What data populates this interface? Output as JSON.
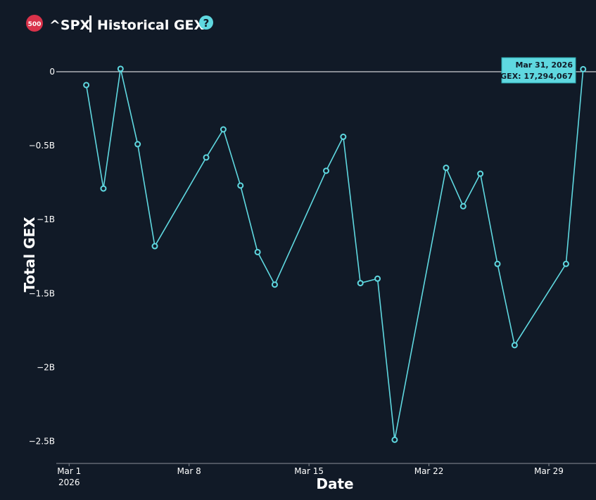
{
  "header": {
    "badge": "500",
    "symbol": "^SPX",
    "title": "Historical GEX",
    "help": "?"
  },
  "chart_data": {
    "type": "line",
    "x": [
      "2026-03-02",
      "2026-03-03",
      "2026-03-04",
      "2026-03-05",
      "2026-03-06",
      "2026-03-09",
      "2026-03-10",
      "2026-03-11",
      "2026-03-12",
      "2026-03-13",
      "2026-03-16",
      "2026-03-17",
      "2026-03-18",
      "2026-03-19",
      "2026-03-20",
      "2026-03-23",
      "2026-03-24",
      "2026-03-25",
      "2026-03-26",
      "2026-03-27",
      "2026-03-30",
      "2026-03-31"
    ],
    "series": [
      {
        "name": "GEX",
        "color": "#5fd8e0",
        "values": [
          -0.09,
          -0.79,
          0.02,
          -0.49,
          -1.18,
          -0.58,
          -0.39,
          -0.77,
          -1.22,
          -1.44,
          -0.67,
          -0.44,
          -1.43,
          -1.4,
          -2.49,
          -0.65,
          -0.91,
          -0.69,
          -1.3,
          -1.85,
          -1.3,
          0.017294067
        ]
      }
    ],
    "xlabel": "Date",
    "ylabel": "Total GEX",
    "xlim": [
      "2026-02-28T06:00:00Z",
      "2026-03-31T18:00:00Z"
    ],
    "xticks": [
      {
        "value": "2026-03-01",
        "label": "Mar 1",
        "sublabel": "2026"
      },
      {
        "value": "2026-03-08",
        "label": "Mar 8"
      },
      {
        "value": "2026-03-15",
        "label": "Mar 15"
      },
      {
        "value": "2026-03-22",
        "label": "Mar 22"
      },
      {
        "value": "2026-03-29",
        "label": "Mar 29"
      }
    ],
    "ylim": [
      -2.65,
      0.2
    ],
    "yticks": [
      {
        "value": -2.5,
        "label": "−2.5B"
      },
      {
        "value": -2,
        "label": "−2B"
      },
      {
        "value": -1.5,
        "label": "−1.5B"
      },
      {
        "value": -1,
        "label": "−1B"
      },
      {
        "value": -0.5,
        "label": "−0.5B"
      },
      0
    ],
    "tooltip": {
      "date": "Mar 31, 2026",
      "text": "GEX: 17,294,067"
    }
  }
}
